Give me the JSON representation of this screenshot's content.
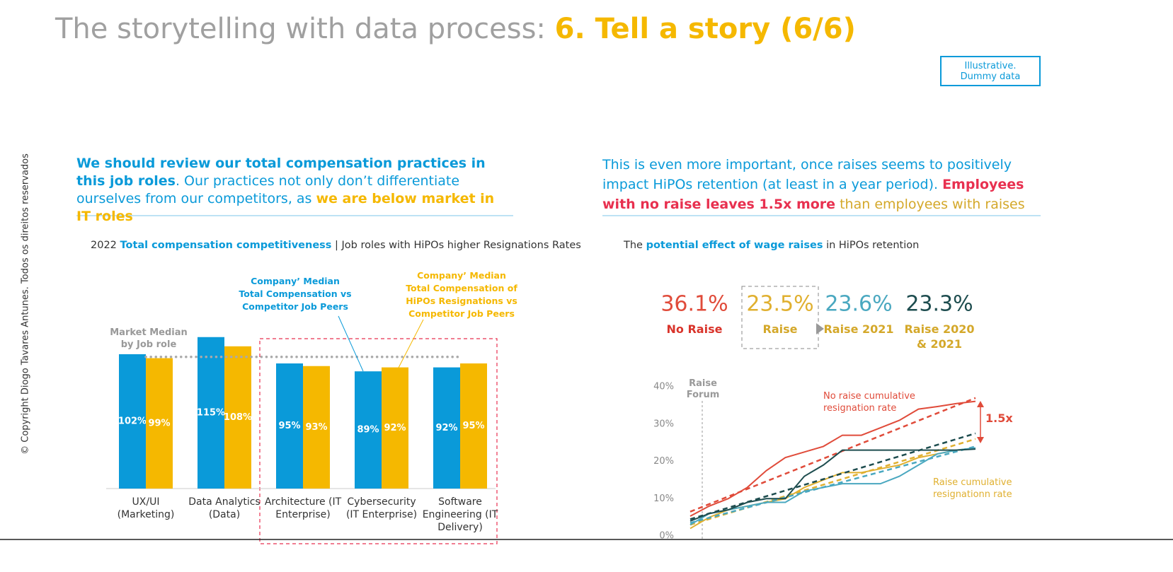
{
  "header": {
    "title": "The storytelling with data process: ",
    "title_highlight": "6. Tell a story (6/6)",
    "badge": "Illustrative. Dummy data"
  },
  "copyright": "© Copyright Diogo Tavares Antunes. Todos os direitos reservados",
  "chart_data": [
    {
      "type": "bar",
      "headline": [
        {
          "text": "We should review our total compensation practices in this job roles",
          "color": "#0a9ad9",
          "bold": true
        },
        {
          "text": ". Our practices not only don’t differentiate ourselves from our competitors, as ",
          "color": "#0a9ad9",
          "bold": false
        },
        {
          "text": "we are below market in IT roles",
          "color": "#f5b800",
          "bold": true
        }
      ],
      "title": [
        {
          "text": "2022 ",
          "color": "#333333",
          "bold": false
        },
        {
          "text": "Total compensation competitiveness",
          "color": "#0a9ad9",
          "bold": true
        },
        {
          "text": " | Job roles with HiPOs higher Resignations Rates",
          "color": "#333333",
          "bold": false
        }
      ],
      "categories": [
        "UX/UI (Marketing)",
        "Data Analytics (Data)",
        "Architecture (IT Enterprise)",
        "Cybersecurity (IT Enterprise)",
        "Software Engineering (IT Delivery)"
      ],
      "series": [
        {
          "name": "Company’ Median Total Compensation vs Competitor Job Peers",
          "color": "#0a9ad9",
          "values": [
            102,
            115,
            95,
            89,
            92
          ],
          "value_labels": [
            "102%",
            "115%",
            "95%",
            "89%",
            "92%"
          ]
        },
        {
          "name": "Company’ Median Total Compensation of HiPOs Resignations vs Competitor Job Peers",
          "color": "#f5b800",
          "values": [
            99,
            108,
            93,
            92,
            95
          ],
          "value_labels": [
            "99%",
            "108%",
            "93%",
            "92%",
            "95%"
          ]
        }
      ],
      "reference_line": {
        "value": 100,
        "label": "Market Median by Job role"
      }
    },
    {
      "type": "line",
      "headline": [
        {
          "text": "This is even more important, once raises seems to positively impact HiPOs retention (at least in a year period). ",
          "color": "#0a9ad9",
          "bold": false
        },
        {
          "text": "Employees with no raise leaves 1.5x more",
          "color": "#e8304f",
          "bold": true
        },
        {
          "text": " than employees with raises",
          "color": "#d4a82a",
          "bold": false
        }
      ],
      "title": [
        {
          "text": "The ",
          "color": "#333333",
          "bold": false
        },
        {
          "text": "potential effect of wage raises",
          "color": "#0a9ad9",
          "bold": true
        },
        {
          "text": " in HiPOs retention",
          "color": "#333333",
          "bold": false
        }
      ],
      "categories": [
        null,
        null,
        null,
        null,
        null,
        null,
        null,
        null,
        null,
        null,
        null,
        null,
        null,
        null,
        null,
        null
      ],
      "series": [
        {
          "name": "No Raise",
          "summary": "36.1%",
          "color": "#e04b3a",
          "name_color": "#d9342b",
          "values": [
            5.3,
            8,
            10,
            13,
            17.5,
            21,
            22.5,
            24,
            27,
            27,
            29,
            31,
            34,
            34.7,
            35.5,
            36.1
          ],
          "trend": [
            6.5,
            37
          ]
        },
        {
          "name": "Raise",
          "summary": "23.5%",
          "color": "#e0b030",
          "name_color": "#d4a82a",
          "values": [
            2,
            5,
            7,
            8,
            9,
            10,
            13,
            15,
            17,
            17,
            18,
            19,
            21,
            22,
            23,
            23.5
          ],
          "trend": [
            3,
            26
          ]
        },
        {
          "name": "Raise 2021",
          "summary": "23.6%",
          "color": "#4aa8c0",
          "name_color": "#d4a82a",
          "values": [
            3,
            6,
            7,
            8,
            9,
            9,
            12,
            13,
            14,
            14,
            14,
            16,
            19,
            22,
            23,
            23.6
          ],
          "trend": [
            3.5,
            24
          ]
        },
        {
          "name": "Raise 2020 & 2021",
          "summary": "23.3%",
          "color": "#1e4d4f",
          "name_color": "#d4a82a",
          "values": [
            4,
            6,
            7,
            9,
            10,
            10,
            16,
            19,
            23,
            23,
            23,
            23,
            23,
            23,
            23,
            23.3
          ],
          "trend": [
            4.5,
            27.5
          ]
        }
      ],
      "ylim": [
        0,
        40
      ],
      "yticks": [
        {
          "value": 0,
          "label": "0%"
        },
        {
          "value": 10,
          "label": "10%"
        },
        {
          "value": 20,
          "label": "20%"
        },
        {
          "value": 30,
          "label": "30%"
        },
        {
          "value": 40,
          "label": "40%"
        }
      ],
      "marker_label": "Raise Forum",
      "annotations": [
        "No raise cumulative resignation rate",
        "Raise cumulative resignationn rate",
        "1.5x"
      ]
    }
  ]
}
